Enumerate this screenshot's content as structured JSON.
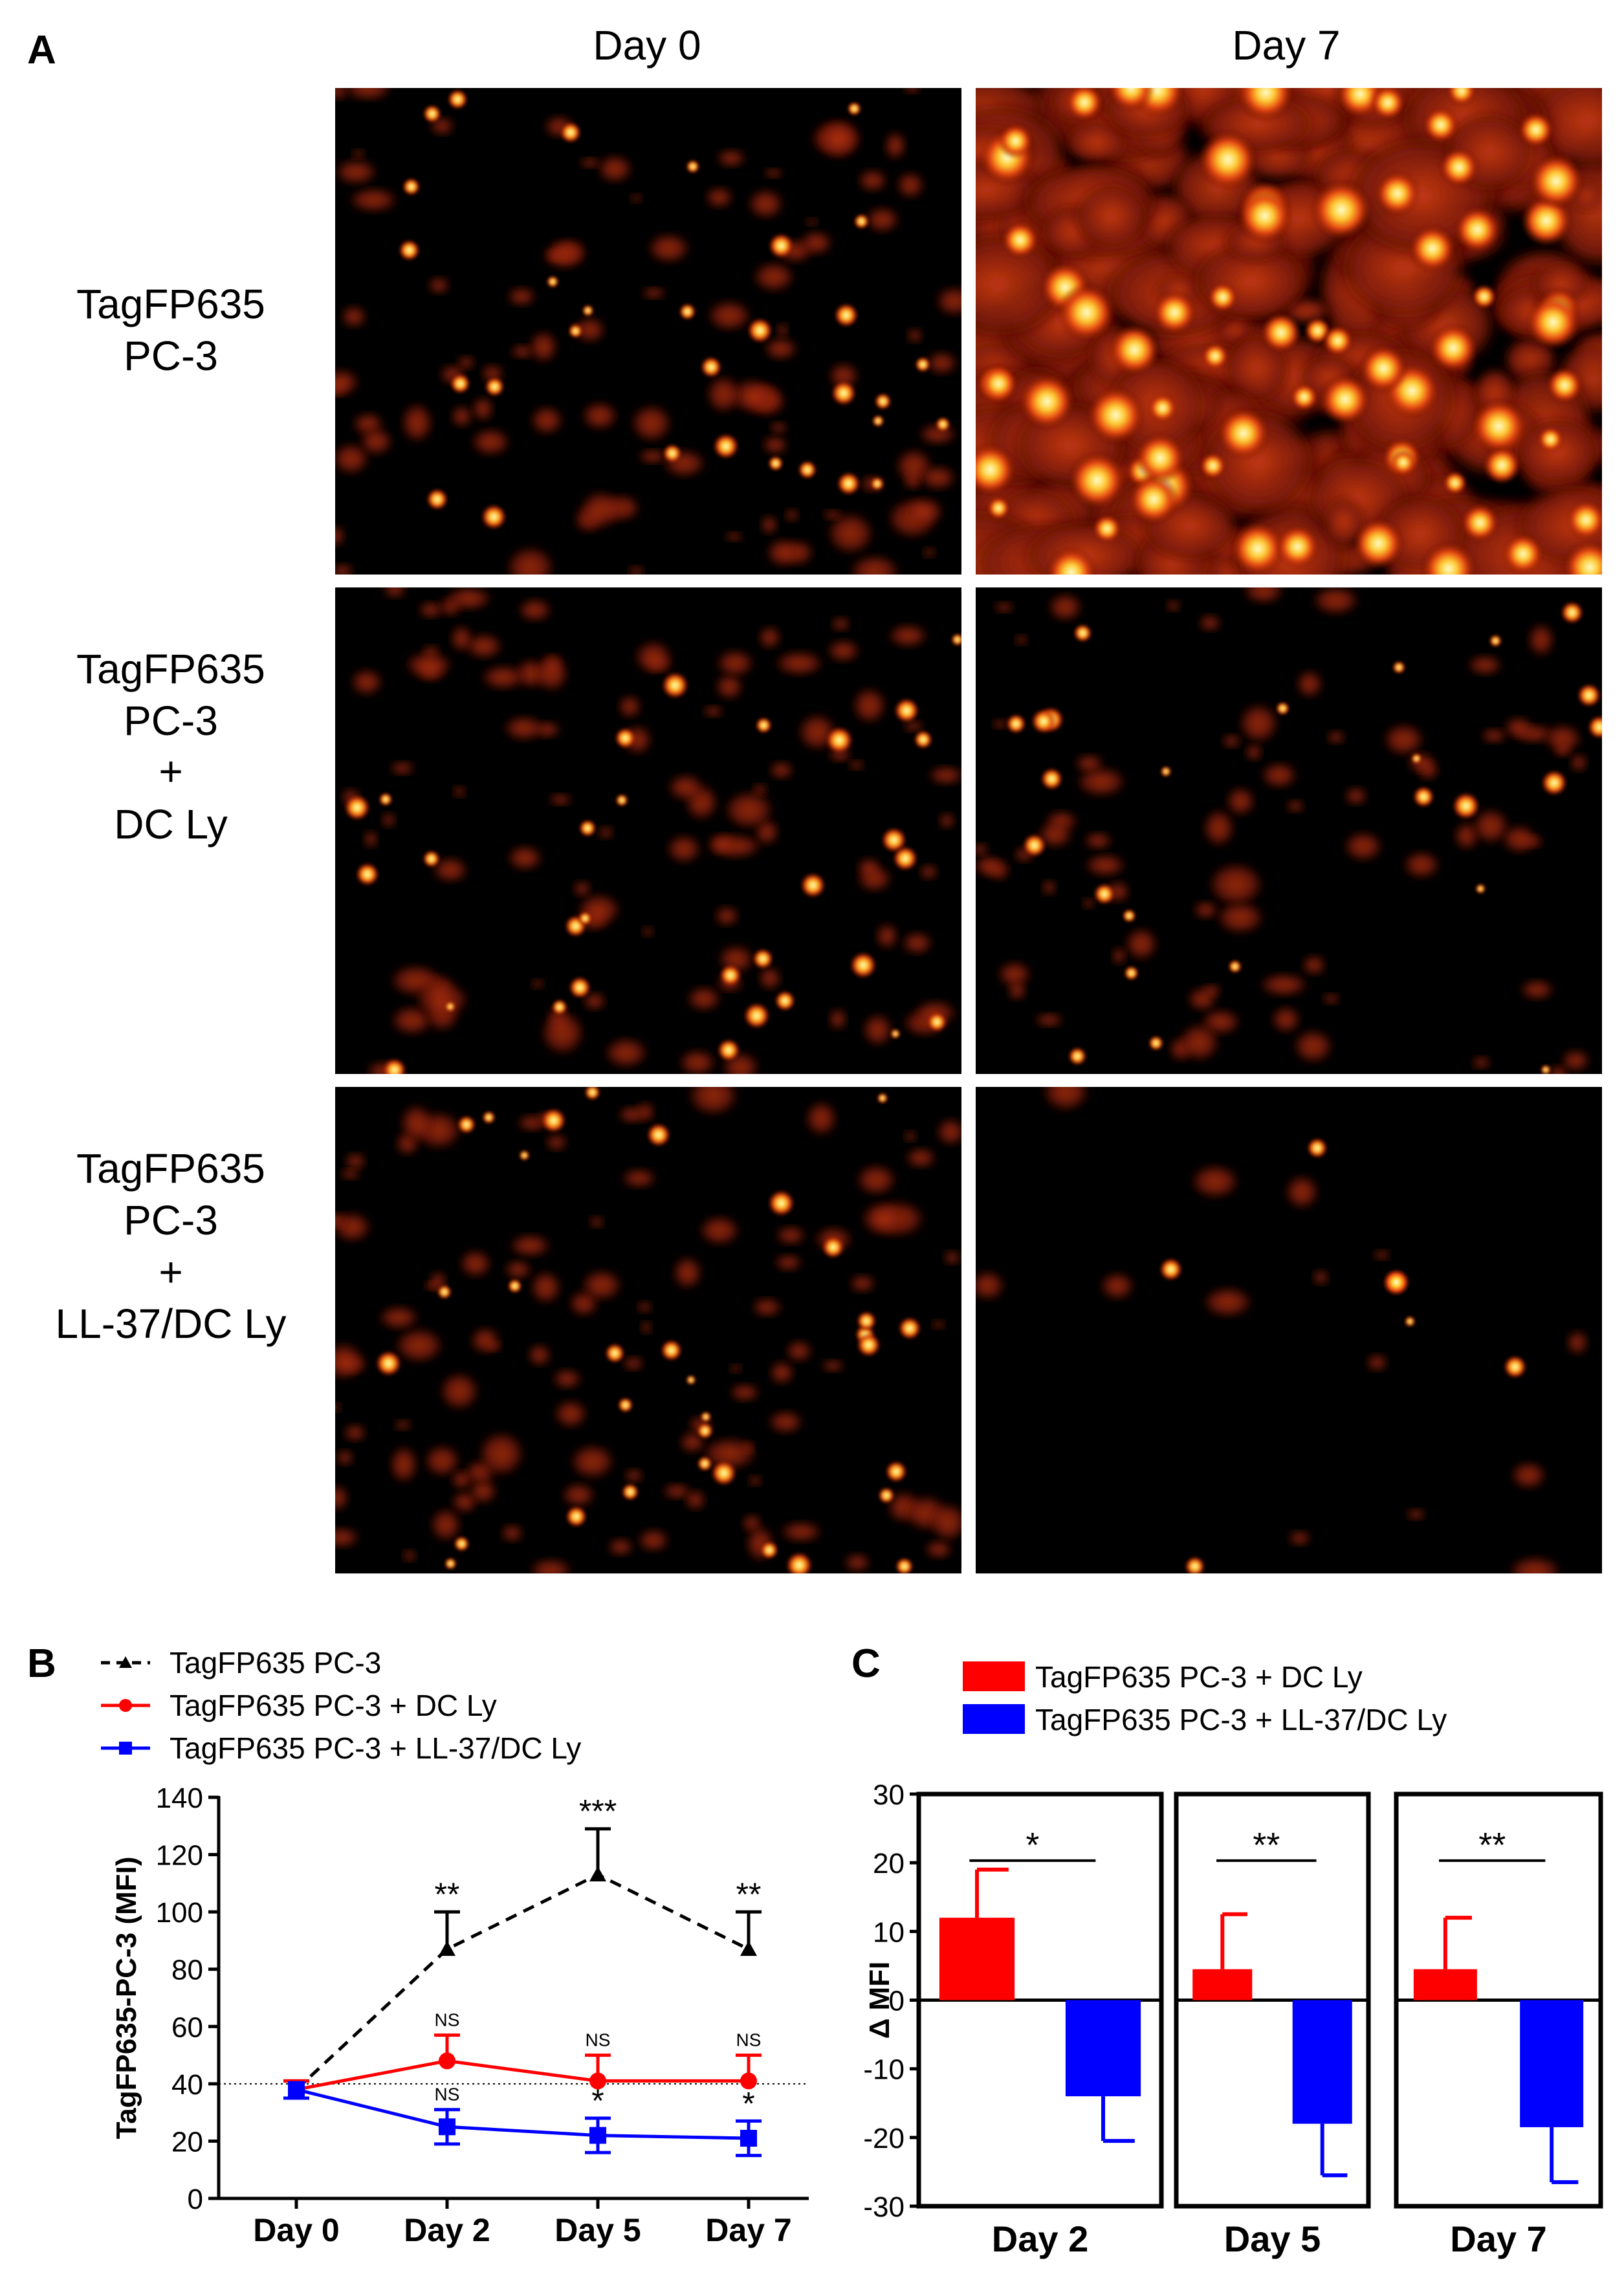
{
  "panel_a": {
    "letter": "A",
    "columns": [
      "Day 0",
      "Day 7"
    ],
    "rows": [
      {
        "lines": [
          "TagFP635",
          "PC-3"
        ]
      },
      {
        "lines": [
          "TagFP635",
          "PC-3",
          "+",
          "DC Ly"
        ]
      },
      {
        "lines": [
          "TagFP635",
          "PC-3",
          "+",
          "LL-37/DC Ly"
        ]
      }
    ]
  },
  "chart_data": [
    {
      "panel": "B",
      "type": "line",
      "ylabel": "TagFP635-PC-3 (MFI)",
      "ylim": [
        0,
        140
      ],
      "yticks": [
        0,
        20,
        40,
        60,
        80,
        100,
        120,
        140
      ],
      "categories": [
        "Day 0",
        "Day 2",
        "Day 5",
        "Day 7"
      ],
      "reference_line": 40,
      "legend_position": "top-left",
      "series": [
        {
          "name": "TagFP635 PC-3",
          "color": "#000000",
          "dash": true,
          "marker": "triangle",
          "values": [
            38,
            87,
            113,
            87
          ],
          "errors": [
            3,
            13,
            16,
            13
          ],
          "annotations": [
            "",
            "**",
            "***",
            "**"
          ]
        },
        {
          "name": "TagFP635 PC-3 + DC Ly",
          "color": "#ff0000",
          "dash": false,
          "marker": "circle",
          "values": [
            38,
            48,
            41,
            41
          ],
          "errors": [
            3,
            9,
            9,
            9
          ],
          "annotations": [
            "",
            "NS",
            "NS",
            "NS"
          ]
        },
        {
          "name": "TagFP635 PC-3 + LL-37/DC Ly",
          "color": "#0000ff",
          "dash": false,
          "marker": "square",
          "values": [
            38,
            25,
            22,
            21
          ],
          "errors": [
            3,
            6,
            6,
            6
          ],
          "annotations": [
            "",
            "NS",
            "*",
            "*"
          ]
        }
      ]
    },
    {
      "panel": "C",
      "type": "bar",
      "ylabel": "Δ MFI",
      "ylim": [
        -30,
        30
      ],
      "yticks": [
        -30,
        -20,
        -10,
        0,
        10,
        20,
        30
      ],
      "categories": [
        "Day 2",
        "Day 5",
        "Day 7"
      ],
      "legend_position": "top",
      "series": [
        {
          "name": "TagFP635 PC-3 + DC Ly",
          "color": "#ff0000",
          "values": [
            12,
            4.5,
            4.5
          ],
          "errors": [
            7,
            8,
            7.5
          ]
        },
        {
          "name": "TagFP635 PC-3 + LL-37/DC Ly",
          "color": "#0000ff",
          "values": [
            -14,
            -18,
            -18.5
          ],
          "errors": [
            6.5,
            7.5,
            8
          ]
        }
      ],
      "significance": [
        "*",
        "**",
        "**"
      ]
    }
  ]
}
